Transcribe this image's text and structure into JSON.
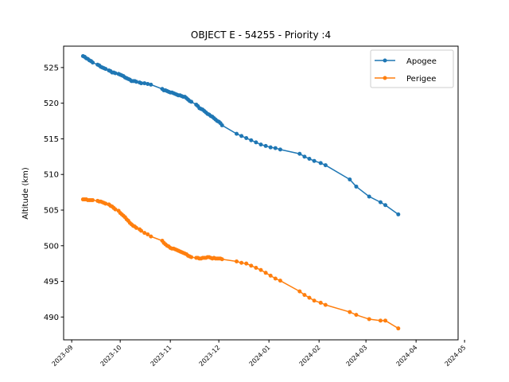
{
  "chart_data": {
    "type": "line",
    "title": "OBJECT E - 54255 - Priority :4",
    "xlabel": "",
    "ylabel": "Altitude (km)",
    "x_axis_type": "date",
    "xlim": [
      "2023-08-27",
      "2024-04-27"
    ],
    "ylim": [
      486.8,
      528.0
    ],
    "xticks": [
      "2023-09",
      "2023-10",
      "2023-11",
      "2023-12",
      "2024-01",
      "2024-02",
      "2024-03",
      "2024-04",
      "2024-05"
    ],
    "yticks": [
      490,
      495,
      500,
      505,
      510,
      515,
      520,
      525
    ],
    "grid": false,
    "legend_position": "top-right",
    "series": [
      {
        "name": "Apogee",
        "color": "#1f77b4",
        "marker": "circle",
        "points": [
          [
            "2023-09-08",
            526.6
          ],
          [
            "2023-09-09",
            526.5
          ],
          [
            "2023-09-10",
            526.3
          ],
          [
            "2023-09-11",
            526.2
          ],
          [
            "2023-09-12",
            526.0
          ],
          [
            "2023-09-13",
            525.9
          ],
          [
            "2023-09-14",
            525.7
          ],
          [
            "2023-09-17",
            525.4
          ],
          [
            "2023-09-18",
            525.3
          ],
          [
            "2023-09-19",
            525.1
          ],
          [
            "2023-09-20",
            525.0
          ],
          [
            "2023-09-21",
            524.9
          ],
          [
            "2023-09-22",
            524.8
          ],
          [
            "2023-09-24",
            524.6
          ],
          [
            "2023-09-25",
            524.5
          ],
          [
            "2023-09-26",
            524.3
          ],
          [
            "2023-09-27",
            524.3
          ],
          [
            "2023-09-28",
            524.2
          ],
          [
            "2023-09-30",
            524.1
          ],
          [
            "2023-10-01",
            524.0
          ],
          [
            "2023-10-02",
            523.9
          ],
          [
            "2023-10-03",
            523.8
          ],
          [
            "2023-10-04",
            523.6
          ],
          [
            "2023-10-05",
            523.5
          ],
          [
            "2023-10-06",
            523.4
          ],
          [
            "2023-10-07",
            523.3
          ],
          [
            "2023-10-08",
            523.1
          ],
          [
            "2023-10-09",
            523.1
          ],
          [
            "2023-10-10",
            523.1
          ],
          [
            "2023-10-11",
            523.0
          ],
          [
            "2023-10-13",
            522.9
          ],
          [
            "2023-10-14",
            522.8
          ],
          [
            "2023-10-16",
            522.8
          ],
          [
            "2023-10-18",
            522.7
          ],
          [
            "2023-10-20",
            522.6
          ],
          [
            "2023-10-27",
            522.0
          ],
          [
            "2023-10-28",
            521.8
          ],
          [
            "2023-10-29",
            521.8
          ],
          [
            "2023-10-30",
            521.7
          ],
          [
            "2023-10-31",
            521.6
          ],
          [
            "2023-11-01",
            521.5
          ],
          [
            "2023-11-02",
            521.5
          ],
          [
            "2023-11-03",
            521.4
          ],
          [
            "2023-11-04",
            521.3
          ],
          [
            "2023-11-05",
            521.2
          ],
          [
            "2023-11-06",
            521.1
          ],
          [
            "2023-11-07",
            521.1
          ],
          [
            "2023-11-08",
            521.0
          ],
          [
            "2023-11-09",
            520.9
          ],
          [
            "2023-11-10",
            520.9
          ],
          [
            "2023-11-11",
            520.7
          ],
          [
            "2023-11-12",
            520.5
          ],
          [
            "2023-11-13",
            520.3
          ],
          [
            "2023-11-14",
            520.2
          ],
          [
            "2023-11-17",
            519.8
          ],
          [
            "2023-11-18",
            519.6
          ],
          [
            "2023-11-19",
            519.3
          ],
          [
            "2023-11-20",
            519.2
          ],
          [
            "2023-11-21",
            519.1
          ],
          [
            "2023-11-22",
            518.9
          ],
          [
            "2023-11-23",
            518.7
          ],
          [
            "2023-11-24",
            518.5
          ],
          [
            "2023-11-25",
            518.4
          ],
          [
            "2023-11-26",
            518.2
          ],
          [
            "2023-11-27",
            518.1
          ],
          [
            "2023-11-28",
            517.9
          ],
          [
            "2023-11-29",
            517.7
          ],
          [
            "2023-11-30",
            517.5
          ],
          [
            "2023-12-01",
            517.4
          ],
          [
            "2023-12-02",
            517.2
          ],
          [
            "2023-12-03",
            516.9
          ],
          [
            "2023-12-12",
            515.7
          ],
          [
            "2023-12-15",
            515.4
          ],
          [
            "2023-12-18",
            515.1
          ],
          [
            "2023-12-21",
            514.8
          ],
          [
            "2023-12-24",
            514.5
          ],
          [
            "2023-12-27",
            514.2
          ],
          [
            "2023-12-30",
            514.0
          ],
          [
            "2024-01-02",
            513.8
          ],
          [
            "2024-01-05",
            513.7
          ],
          [
            "2024-01-08",
            513.5
          ],
          [
            "2024-01-20",
            512.9
          ],
          [
            "2024-01-23",
            512.5
          ],
          [
            "2024-01-26",
            512.2
          ],
          [
            "2024-01-29",
            511.9
          ],
          [
            "2024-02-02",
            511.6
          ],
          [
            "2024-02-05",
            511.3
          ],
          [
            "2024-02-20",
            509.3
          ],
          [
            "2024-02-24",
            508.3
          ],
          [
            "2024-03-03",
            506.9
          ],
          [
            "2024-03-10",
            506.1
          ],
          [
            "2024-03-13",
            505.7
          ],
          [
            "2024-03-21",
            504.4
          ]
        ]
      },
      {
        "name": "Perigee",
        "color": "#ff7f0e",
        "marker": "circle",
        "points": [
          [
            "2023-09-08",
            506.5
          ],
          [
            "2023-09-09",
            506.5
          ],
          [
            "2023-09-10",
            506.5
          ],
          [
            "2023-09-11",
            506.4
          ],
          [
            "2023-09-12",
            506.4
          ],
          [
            "2023-09-13",
            506.4
          ],
          [
            "2023-09-14",
            506.4
          ],
          [
            "2023-09-17",
            506.3
          ],
          [
            "2023-09-18",
            506.2
          ],
          [
            "2023-09-19",
            506.2
          ],
          [
            "2023-09-20",
            506.1
          ],
          [
            "2023-09-21",
            506.0
          ],
          [
            "2023-09-22",
            505.9
          ],
          [
            "2023-09-24",
            505.8
          ],
          [
            "2023-09-25",
            505.6
          ],
          [
            "2023-09-26",
            505.5
          ],
          [
            "2023-09-27",
            505.3
          ],
          [
            "2023-09-28",
            505.1
          ],
          [
            "2023-09-30",
            504.9
          ],
          [
            "2023-10-01",
            504.6
          ],
          [
            "2023-10-02",
            504.4
          ],
          [
            "2023-10-03",
            504.2
          ],
          [
            "2023-10-04",
            504.0
          ],
          [
            "2023-10-05",
            503.7
          ],
          [
            "2023-10-06",
            503.5
          ],
          [
            "2023-10-07",
            503.2
          ],
          [
            "2023-10-08",
            503.0
          ],
          [
            "2023-10-09",
            502.8
          ],
          [
            "2023-10-10",
            502.7
          ],
          [
            "2023-10-11",
            502.5
          ],
          [
            "2023-10-13",
            502.3
          ],
          [
            "2023-10-14",
            502.1
          ],
          [
            "2023-10-16",
            501.8
          ],
          [
            "2023-10-18",
            501.6
          ],
          [
            "2023-10-20",
            501.3
          ],
          [
            "2023-10-27",
            500.7
          ],
          [
            "2023-10-28",
            500.4
          ],
          [
            "2023-10-29",
            500.2
          ],
          [
            "2023-10-30",
            500.0
          ],
          [
            "2023-10-31",
            499.9
          ],
          [
            "2023-11-01",
            499.7
          ],
          [
            "2023-11-02",
            499.6
          ],
          [
            "2023-11-03",
            499.6
          ],
          [
            "2023-11-04",
            499.5
          ],
          [
            "2023-11-05",
            499.4
          ],
          [
            "2023-11-06",
            499.3
          ],
          [
            "2023-11-07",
            499.2
          ],
          [
            "2023-11-08",
            499.1
          ],
          [
            "2023-11-09",
            499.0
          ],
          [
            "2023-11-10",
            498.9
          ],
          [
            "2023-11-11",
            498.8
          ],
          [
            "2023-11-12",
            498.6
          ],
          [
            "2023-11-13",
            498.5
          ],
          [
            "2023-11-14",
            498.4
          ],
          [
            "2023-11-17",
            498.3
          ],
          [
            "2023-11-18",
            498.3
          ],
          [
            "2023-11-19",
            498.2
          ],
          [
            "2023-11-20",
            498.2
          ],
          [
            "2023-11-21",
            498.3
          ],
          [
            "2023-11-22",
            498.3
          ],
          [
            "2023-11-23",
            498.3
          ],
          [
            "2023-11-24",
            498.4
          ],
          [
            "2023-11-25",
            498.4
          ],
          [
            "2023-11-26",
            498.3
          ],
          [
            "2023-11-27",
            498.2
          ],
          [
            "2023-11-28",
            498.3
          ],
          [
            "2023-11-29",
            498.2
          ],
          [
            "2023-11-30",
            498.2
          ],
          [
            "2023-12-01",
            498.2
          ],
          [
            "2023-12-02",
            498.2
          ],
          [
            "2023-12-03",
            498.1
          ],
          [
            "2023-12-12",
            497.8
          ],
          [
            "2023-12-15",
            497.6
          ],
          [
            "2023-12-18",
            497.5
          ],
          [
            "2023-12-21",
            497.2
          ],
          [
            "2023-12-24",
            496.9
          ],
          [
            "2023-12-27",
            496.6
          ],
          [
            "2023-12-30",
            496.2
          ],
          [
            "2024-01-02",
            495.8
          ],
          [
            "2024-01-05",
            495.4
          ],
          [
            "2024-01-08",
            495.1
          ],
          [
            "2024-01-20",
            493.6
          ],
          [
            "2024-01-23",
            493.1
          ],
          [
            "2024-01-26",
            492.7
          ],
          [
            "2024-01-29",
            492.3
          ],
          [
            "2024-02-02",
            492.0
          ],
          [
            "2024-02-05",
            491.7
          ],
          [
            "2024-02-20",
            490.7
          ],
          [
            "2024-02-24",
            490.3
          ],
          [
            "2024-03-03",
            489.7
          ],
          [
            "2024-03-10",
            489.5
          ],
          [
            "2024-03-13",
            489.5
          ],
          [
            "2024-03-21",
            488.4
          ]
        ]
      }
    ]
  }
}
